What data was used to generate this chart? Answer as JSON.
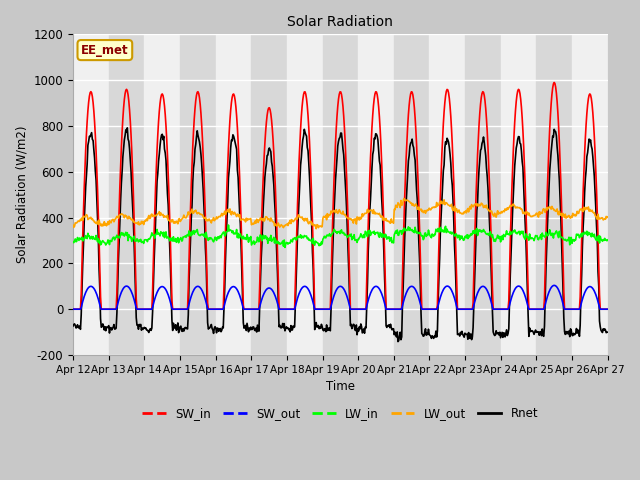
{
  "title": "Solar Radiation",
  "ylabel": "Solar Radiation (W/m2)",
  "xlabel": "Time",
  "ylim": [
    -200,
    1200
  ],
  "yticks": [
    -200,
    0,
    200,
    400,
    600,
    800,
    1000,
    1200
  ],
  "xtick_labels": [
    "Apr 12",
    "Apr 13",
    "Apr 14",
    "Apr 15",
    "Apr 16",
    "Apr 17",
    "Apr 18",
    "Apr 19",
    "Apr 20",
    "Apr 21",
    "Apr 22",
    "Apr 23",
    "Apr 24",
    "Apr 25",
    "Apr 26",
    "Apr 27"
  ],
  "n_days": 15,
  "sw_in_peaks": [
    950,
    960,
    940,
    950,
    940,
    880,
    950,
    950,
    950,
    950,
    960,
    950,
    960,
    990,
    940
  ],
  "annotation_text": "EE_met",
  "annotation_bg": "#ffffcc",
  "annotation_border": "#cc9900",
  "fig_facecolor": "#c8c8c8",
  "ax_facecolor": "#e8e8e8",
  "band_light": "#f0f0f0",
  "band_dark": "#d8d8d8"
}
